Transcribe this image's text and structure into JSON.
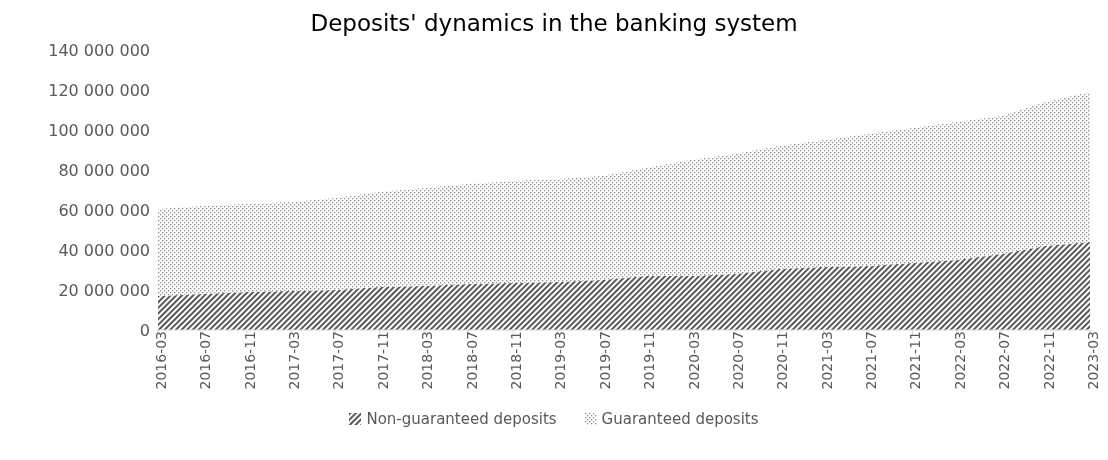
{
  "chart_data": {
    "type": "area",
    "title": "Deposits' dynamics in the banking system",
    "stacked": true,
    "legend": "bottom",
    "grid": false,
    "x": [
      "2016-03",
      "2016-07",
      "2016-11",
      "2017-03",
      "2017-07",
      "2017-11",
      "2018-03",
      "2018-07",
      "2018-11",
      "2019-03",
      "2019-07",
      "2019-11",
      "2020-03",
      "2020-07",
      "2020-11",
      "2021-03",
      "2021-07",
      "2021-11",
      "2022-03",
      "2022-07",
      "2022-11",
      "2023-03"
    ],
    "xlim": [
      "2016-03",
      "2023-03"
    ],
    "xticks": [
      "2016-03",
      "2016-07",
      "2016-11",
      "2017-03",
      "2017-07",
      "2017-11",
      "2018-03",
      "2018-07",
      "2018-11",
      "2019-03",
      "2019-07",
      "2019-11",
      "2020-03",
      "2020-07",
      "2020-11",
      "2021-03",
      "2021-07",
      "2021-11",
      "2022-03",
      "2022-07",
      "2022-11",
      "2023-03"
    ],
    "ylim": [
      0,
      140000000
    ],
    "yticks": [
      0,
      {
        "value": 20000000,
        "label": "20 000 000"
      },
      {
        "value": 40000000,
        "label": "40 000 000"
      },
      {
        "value": 60000000,
        "label": "60 000 000"
      },
      {
        "value": 80000000,
        "label": "80 000 000"
      },
      {
        "value": 100000000,
        "label": "100 000 000"
      },
      {
        "value": 120000000,
        "label": "120 000 000"
      },
      {
        "value": 140000000,
        "label": "140 000 000"
      }
    ],
    "series": [
      {
        "name": "Non-guaranteed deposits",
        "color": "#595959",
        "values": [
          17000000,
          18000000,
          19000000,
          19500000,
          20000000,
          21500000,
          22000000,
          23000000,
          23500000,
          24000000,
          25000000,
          27000000,
          27000000,
          28000000,
          30500000,
          31500000,
          32000000,
          33500000,
          35000000,
          38000000,
          42000000,
          44000000
        ]
      },
      {
        "name": "Guaranteed deposits",
        "color": "#8c8c8c",
        "values": [
          43500000,
          44000000,
          44000000,
          44500000,
          46000000,
          47500000,
          49000000,
          50000000,
          51000000,
          51500000,
          52000000,
          54000000,
          58000000,
          60000000,
          61500000,
          63500000,
          66000000,
          67500000,
          69000000,
          69000000,
          72000000,
          75000000
        ]
      }
    ]
  }
}
